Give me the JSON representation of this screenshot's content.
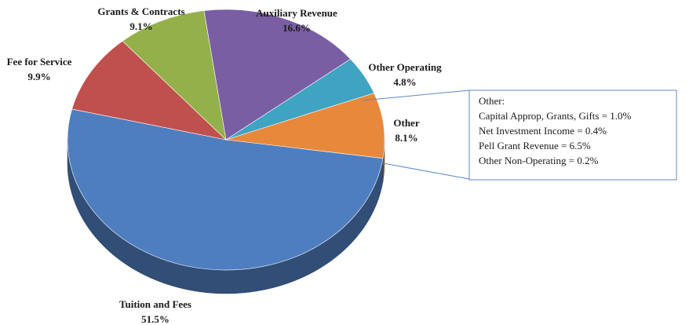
{
  "chart_data": {
    "type": "pie",
    "categories": [
      "Auxiliary Revenue",
      "Other Operating",
      "Other",
      "Tuition and Fees",
      "Fee for Service",
      "Grants & Contracts"
    ],
    "values": [
      16.6,
      4.8,
      8.1,
      51.5,
      9.9,
      9.1
    ],
    "value_labels": [
      "16.6%",
      "4.8%",
      "8.1%",
      "51.5%",
      "9.9%",
      "9.1%"
    ],
    "colors": [
      "#7a5ea4",
      "#3fa3c2",
      "#e8883b",
      "#4f7ec0",
      "#c0504d",
      "#94b04b"
    ],
    "annotations": {
      "callout": [
        "Other:",
        "Capital Approp, Grants, Gifts = 1.0%",
        "Net Investment Income = 0.4%",
        "Pell Grant Revenue = 6.5%",
        "Other Non-Operating = 0.2%"
      ]
    }
  }
}
